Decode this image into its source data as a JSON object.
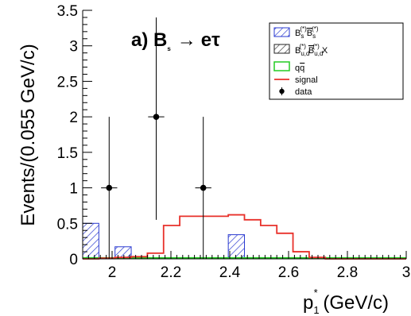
{
  "chart_data": {
    "type": "histogram",
    "panel_label": {
      "prefix": "a) B",
      "sub": "s",
      "arrow": "→",
      "suffix": "eτ"
    },
    "xlabel": {
      "main": "p",
      "sub": "1",
      "sup": "*",
      "unit": " (GeV/c)"
    },
    "ylabel": "Events/(0.055 GeV/c)",
    "xlim": [
      1.9,
      3.0
    ],
    "ylim": [
      0,
      3.5
    ],
    "x_ticks": [
      2,
      2.2,
      2.4,
      2.6,
      2.8,
      3
    ],
    "y_ticks": [
      0,
      0.5,
      1,
      1.5,
      2,
      2.5,
      3,
      3.5
    ],
    "x_tick_labels": [
      "2",
      "2.2",
      "2.4",
      "2.6",
      "2.8",
      "3"
    ],
    "y_tick_labels": [
      "0",
      "0.5",
      "1",
      "1.5",
      "2",
      "2.5",
      "3",
      "3.5"
    ],
    "grid": false,
    "legend_position": "top-right",
    "legend": [
      {
        "key": "bs",
        "label": "B_s^(*) B̄_s^(*)",
        "style": "hatch-blue"
      },
      {
        "key": "bud",
        "label": "B_u,d^(*) B̄_u,d^(*) X",
        "style": "hatch-black"
      },
      {
        "key": "qq",
        "label": "qq̄",
        "style": "box-green"
      },
      {
        "key": "signal",
        "label": "signal",
        "style": "line-red"
      },
      {
        "key": "data",
        "label": "data",
        "style": "marker"
      }
    ],
    "bins": {
      "bs_bkg": [
        {
          "x0": 1.9,
          "x1": 1.955,
          "y": 0.5
        },
        {
          "x0": 2.01,
          "x1": 2.065,
          "y": 0.17
        },
        {
          "x0": 2.395,
          "x1": 2.45,
          "y": 0.34
        }
      ],
      "qq_bkg": {
        "x0": 1.9,
        "x1": 3.0,
        "y": 0.0
      }
    },
    "signal": {
      "edges": [
        1.9,
        1.955,
        2.01,
        2.065,
        2.12,
        2.175,
        2.23,
        2.285,
        2.34,
        2.395,
        2.45,
        2.505,
        2.56,
        2.615,
        2.67,
        2.725,
        3.0
      ],
      "values": [
        0.0,
        0.01,
        0.02,
        0.03,
        0.08,
        0.47,
        0.6,
        0.6,
        0.6,
        0.62,
        0.55,
        0.47,
        0.36,
        0.1,
        0.02,
        0.0
      ]
    },
    "data": [
      {
        "x": 1.99,
        "y": 1,
        "err_low": 1,
        "err_high": 1
      },
      {
        "x": 2.15,
        "y": 2,
        "err_low": 1.45,
        "err_high": 1.4
      },
      {
        "x": 2.31,
        "y": 1,
        "err_low": 1,
        "err_high": 1
      }
    ],
    "colors": {
      "bs": "#2a3ad0",
      "bud": "#222222",
      "qq": "#22cc22",
      "signal": "#e8302a",
      "data": "#000000"
    }
  }
}
